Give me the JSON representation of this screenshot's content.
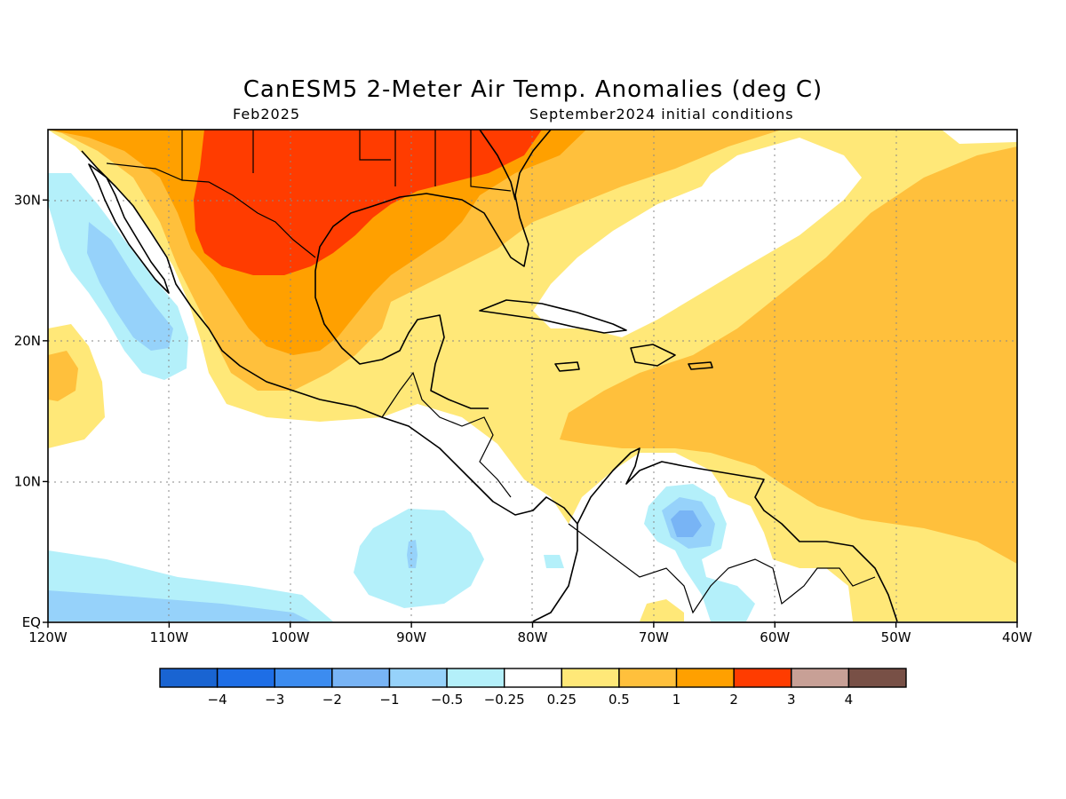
{
  "title": "CanESM5 2-Meter Air Temp. Anomalies (deg C)",
  "subtitle_left": "Feb2025",
  "subtitle_right": "September2024 initial conditions",
  "map": {
    "lon_range": [
      -120,
      -40
    ],
    "lat_range": [
      0,
      35
    ],
    "lat_ticks": [
      {
        "value": 30,
        "label": "30N"
      },
      {
        "value": 20,
        "label": "20N"
      },
      {
        "value": 10,
        "label": "10N"
      },
      {
        "value": 0,
        "label": "EQ"
      }
    ],
    "lon_ticks": [
      {
        "value": -120,
        "label": "120W"
      },
      {
        "value": -110,
        "label": "110W"
      },
      {
        "value": -100,
        "label": "100W"
      },
      {
        "value": -90,
        "label": "90W"
      },
      {
        "value": -80,
        "label": "80W"
      },
      {
        "value": -70,
        "label": "70W"
      },
      {
        "value": -60,
        "label": "60W"
      },
      {
        "value": -50,
        "label": "50W"
      },
      {
        "value": -40,
        "label": "40W"
      }
    ]
  },
  "colorbar": {
    "colors": [
      "#1964d2",
      "#1e6ee6",
      "#3c8cf0",
      "#78b4f5",
      "#96d2fa",
      "#b4f0fa",
      "#ffffff",
      "#ffe878",
      "#ffc03c",
      "#ffa000",
      "#ff3c00",
      "#c8a096",
      "#785046"
    ],
    "labels": [
      "-4",
      "-3",
      "-2",
      "-1",
      "-0.5",
      "-0.25",
      "0.25",
      "0.5",
      "1",
      "2",
      "3",
      "4"
    ]
  }
}
